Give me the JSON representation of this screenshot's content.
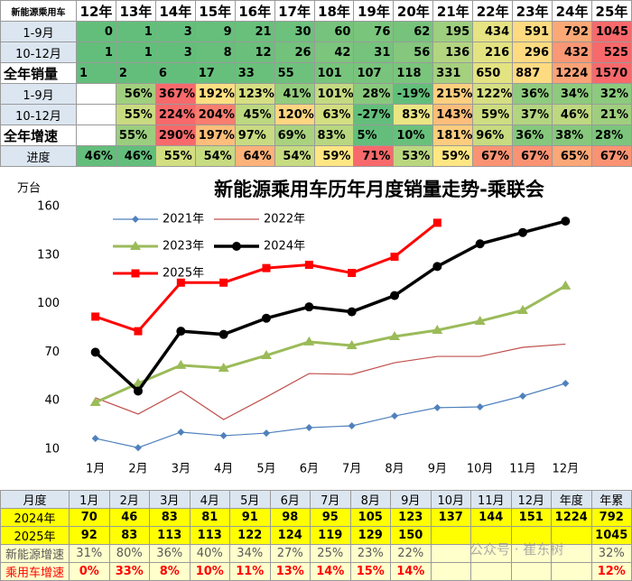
{
  "top_table": {
    "header": [
      "新能源乘用车",
      "12年",
      "13年",
      "14年",
      "15年",
      "16年",
      "17年",
      "18年",
      "19年",
      "20年",
      "21年",
      "22年",
      "23年",
      "24年",
      "25年"
    ],
    "rows": [
      {
        "label": "1-9月",
        "cells": [
          0,
          1,
          3,
          9,
          21,
          30,
          60,
          76,
          62,
          195,
          434,
          591,
          792,
          1045
        ]
      },
      {
        "label": "10-12月",
        "cells": [
          1,
          1,
          3,
          8,
          12,
          26,
          42,
          31,
          56,
          136,
          216,
          296,
          432,
          525
        ]
      },
      {
        "label": "全年销量",
        "cells": [
          1,
          2,
          6,
          17,
          33,
          55,
          101,
          107,
          118,
          331,
          650,
          887,
          1224,
          1570
        ]
      },
      {
        "label": "1-9月",
        "cells": [
          null,
          "56%",
          "367%",
          "192%",
          "123%",
          "41%",
          "101%",
          "28%",
          "-19%",
          "215%",
          "122%",
          "36%",
          "34%",
          "32%"
        ]
      },
      {
        "label": "10-12月",
        "cells": [
          null,
          "55%",
          "224%",
          "204%",
          "45%",
          "120%",
          "63%",
          "-27%",
          "83%",
          "143%",
          "59%",
          "37%",
          "46%",
          "21%"
        ]
      },
      {
        "label": "全年增速",
        "cells": [
          null,
          "55%",
          "290%",
          "197%",
          "97%",
          "69%",
          "83%",
          "5%",
          "10%",
          "181%",
          "96%",
          "36%",
          "38%",
          "28%"
        ]
      },
      {
        "label": "进度",
        "cells": [
          "46%",
          "46%",
          "55%",
          "54%",
          "64%",
          "54%",
          "59%",
          "71%",
          "53%",
          "59%",
          "67%",
          "67%",
          "65%",
          "67%"
        ]
      }
    ]
  },
  "chart_data": {
    "type": "line",
    "title": "新能源乘用车历年月度销量走势-乘联会",
    "y_label": "万台",
    "categories": [
      "1月",
      "2月",
      "3月",
      "4月",
      "5月",
      "6月",
      "7月",
      "8月",
      "9月",
      "10月",
      "11月",
      "12月"
    ],
    "ylim": [
      10,
      160
    ],
    "yticks": [
      10,
      40,
      70,
      100,
      130,
      160
    ],
    "grid": false,
    "legend": "upper left",
    "series": [
      {
        "name": "2021年",
        "color": "#4f81bd",
        "marker": "diamond",
        "linewidth": 1.2,
        "values": [
          16.7,
          11,
          20.6,
          18.4,
          20,
          23.4,
          24.5,
          30.6,
          35.7,
          36.2,
          42.9,
          50.7
        ]
      },
      {
        "name": "2022年",
        "color": "#c0504d",
        "marker": "none",
        "linewidth": 1.2,
        "values": [
          41.8,
          31.8,
          46,
          28.4,
          42.3,
          56.8,
          56.3,
          63.5,
          67.4,
          67.4,
          73,
          75
        ]
      },
      {
        "name": "2023年",
        "color": "#9bbb59",
        "marker": "triangle",
        "linewidth": 3,
        "values": [
          39,
          50.7,
          61.9,
          60.2,
          68,
          76.4,
          74.1,
          79.7,
          83.6,
          89.2,
          95.9,
          111
        ]
      },
      {
        "name": "2024年",
        "color": "#000000",
        "marker": "circle",
        "linewidth": 3.5,
        "values": [
          70,
          46,
          83,
          81,
          91,
          98,
          95,
          105,
          123,
          137,
          144,
          151
        ]
      },
      {
        "name": "2025年",
        "color": "#ff0000",
        "marker": "square",
        "linewidth": 3,
        "values": [
          92,
          83,
          113,
          113,
          122,
          124,
          119,
          129,
          150,
          null,
          null,
          null
        ]
      }
    ]
  },
  "bottom_table": {
    "header": [
      "月度",
      "1月",
      "2月",
      "3月",
      "4月",
      "5月",
      "6月",
      "7月",
      "8月",
      "9月",
      "10月",
      "11月",
      "12月",
      "年度",
      "年累"
    ],
    "rows": [
      {
        "label": "2024年",
        "cells": [
          70,
          46,
          83,
          81,
          91,
          98,
          95,
          105,
          123,
          137,
          144,
          151,
          1224,
          792
        ]
      },
      {
        "label": "2025年",
        "cells": [
          92,
          83,
          113,
          113,
          122,
          124,
          119,
          129,
          150,
          null,
          null,
          null,
          null,
          1045
        ]
      },
      {
        "label": "新能源增速",
        "cells": [
          "31%",
          "80%",
          "36%",
          "40%",
          "34%",
          "27%",
          "25%",
          "23%",
          "22%",
          null,
          null,
          null,
          null,
          "32%"
        ]
      },
      {
        "label": "乘用车增速",
        "cells": [
          "0%",
          "33%",
          "8%",
          "10%",
          "11%",
          "13%",
          "14%",
          "15%",
          "14%",
          null,
          null,
          null,
          null,
          "12%"
        ]
      }
    ]
  },
  "watermark": "公众号 · 崔东树"
}
